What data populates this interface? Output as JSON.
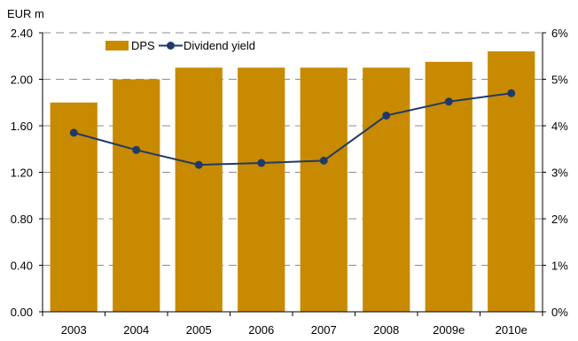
{
  "chart_data": {
    "type": "bar",
    "unit_label": "EUR m",
    "categories": [
      "2003",
      "2004",
      "2005",
      "2006",
      "2007",
      "2008",
      "2009e",
      "2010e"
    ],
    "y_left": {
      "ylim": [
        0,
        2.4
      ],
      "ticks": [
        "0.00",
        "0.40",
        "0.80",
        "1.20",
        "1.60",
        "2.00",
        "2.40"
      ]
    },
    "y_right": {
      "ylim": [
        0,
        6
      ],
      "ticks": [
        "0%",
        "1%",
        "2%",
        "3%",
        "4%",
        "5%",
        "6%"
      ]
    },
    "series": [
      {
        "name": "DPS",
        "type": "bar",
        "axis": "left",
        "color": "#C88A00",
        "values": [
          1.8,
          2.0,
          2.1,
          2.1,
          2.1,
          2.1,
          2.15,
          2.24
        ]
      },
      {
        "name": "Dividend yield",
        "type": "line",
        "axis": "right",
        "color": "#1F3A68",
        "values": [
          3.85,
          3.48,
          3.16,
          3.2,
          3.25,
          4.22,
          4.52,
          4.7
        ]
      }
    ],
    "grid": true,
    "grid_style": "dashed",
    "legend_position": "top-left"
  }
}
